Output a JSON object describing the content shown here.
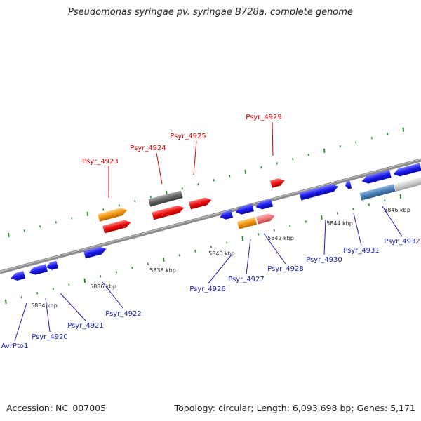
{
  "title": "Pseudomonas syringae pv. syringae B728a, complete genome",
  "accession": "Accession: NC_007005",
  "summary": "Topology: circular; Length: 6,093,698 bp; Genes: 5,171",
  "colors": {
    "backbone": "#8c8c8c",
    "tick": "#2e8b2e",
    "label_top": "#d40000",
    "label_bottom": "#1a1ab0",
    "red": "#ee1111",
    "blue": "#1a1aee",
    "orange": "#f2960f",
    "gray": "#666666",
    "pink": "#ee7777",
    "steel": "#4a82b8",
    "silver": "#cccccc"
  },
  "kbp_labels": [
    "5834 kbp",
    "5836 kbp",
    "5838 kbp",
    "5840 kbp",
    "5842 kbp",
    "5844 kbp",
    "5846 kbp"
  ],
  "gene_labels_top": [
    "Psyr_4923",
    "Psyr_4924",
    "Psyr_4925",
    "Psyr_4929"
  ],
  "gene_labels_bottom": [
    "AvrPto1",
    "Psyr_4920",
    "Psyr_4921",
    "Psyr_4922",
    "Psyr_4926",
    "Psyr_4927",
    "Psyr_4928",
    "Psyr_4930",
    "Psyr_4931",
    "Psyr_4932"
  ]
}
